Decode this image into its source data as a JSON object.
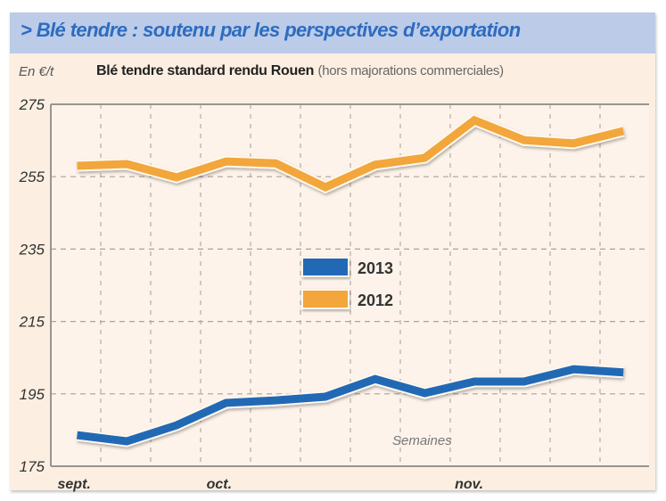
{
  "header": {
    "title": "> Blé tendre : soutenu par les perspectives d’exportation",
    "unit": "En €/t",
    "subtitle_bold": "Blé tendre standard rendu Rouen",
    "subtitle_note": "(hors majorations commerciales)"
  },
  "chart_data": {
    "type": "line",
    "title": "Blé tendre standard rendu Rouen (hors majorations commerciales)",
    "ylabel": "En €/t",
    "xlabel": "Semaines",
    "ylim": [
      175,
      275
    ],
    "yticks": [
      275,
      255,
      235,
      215,
      195,
      175
    ],
    "x": [
      1,
      2,
      3,
      4,
      5,
      6,
      7,
      8,
      9,
      10,
      11,
      12
    ],
    "month_labels": [
      {
        "label": "sept.",
        "week": 1
      },
      {
        "label": "oct.",
        "week": 4
      },
      {
        "label": "nov.",
        "week": 9
      }
    ],
    "grid": true,
    "legend_position": "center",
    "series": [
      {
        "name": "2013",
        "color": "#2369b5",
        "values": [
          183.6,
          181.9,
          186.3,
          192.5,
          193.2,
          194.2,
          199.1,
          195.2,
          198.4,
          198.4,
          201.8,
          200.9
        ]
      },
      {
        "name": "2012",
        "color": "#f2a63a",
        "values": [
          258.0,
          258.5,
          254.8,
          259.2,
          258.7,
          252.1,
          258.3,
          260.2,
          270.6,
          265.1,
          264.2,
          267.6
        ]
      }
    ]
  }
}
